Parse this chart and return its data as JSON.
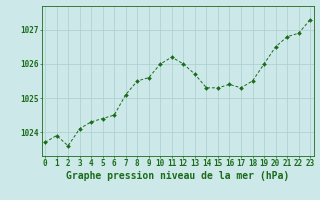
{
  "x": [
    0,
    1,
    2,
    3,
    4,
    5,
    6,
    7,
    8,
    9,
    10,
    11,
    12,
    13,
    14,
    15,
    16,
    17,
    18,
    19,
    20,
    21,
    22,
    23
  ],
  "y": [
    1023.7,
    1023.9,
    1023.6,
    1024.1,
    1024.3,
    1024.4,
    1024.5,
    1025.1,
    1025.5,
    1025.6,
    1026.0,
    1026.2,
    1026.0,
    1025.7,
    1025.3,
    1025.3,
    1025.4,
    1025.3,
    1025.5,
    1026.0,
    1026.5,
    1026.8,
    1026.9,
    1027.3
  ],
  "line_color": "#1a6b1a",
  "marker": "D",
  "marker_size": 2.0,
  "bg_color": "#cce8e8",
  "grid_color": "#aacece",
  "axis_color": "#1a6b1a",
  "ylabel_ticks": [
    1024,
    1025,
    1026,
    1027
  ],
  "xlabel_ticks": [
    0,
    1,
    2,
    3,
    4,
    5,
    6,
    7,
    8,
    9,
    10,
    11,
    12,
    13,
    14,
    15,
    16,
    17,
    18,
    19,
    20,
    21,
    22,
    23
  ],
  "ylim": [
    1023.3,
    1027.7
  ],
  "xlim": [
    -0.3,
    23.3
  ],
  "xlabel": "Graphe pression niveau de la mer (hPa)",
  "xlabel_fontsize": 7,
  "tick_fontsize": 5.5,
  "linewidth": 0.7
}
